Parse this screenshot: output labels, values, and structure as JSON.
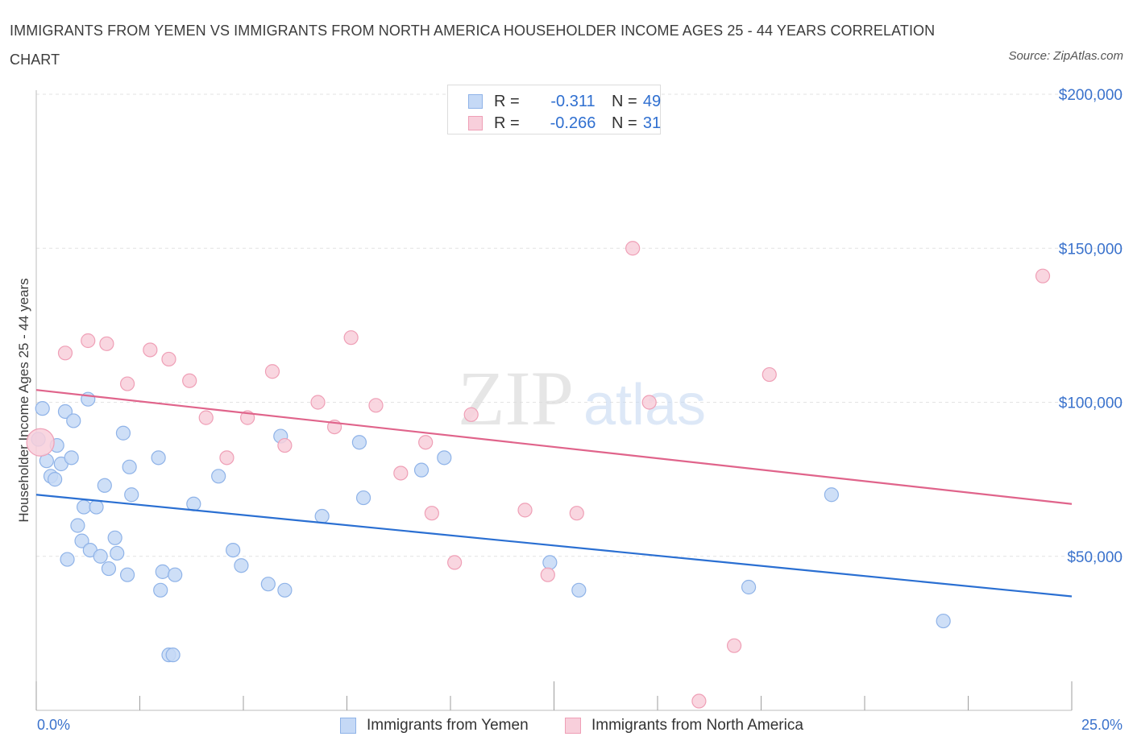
{
  "header": {
    "title": "IMMIGRANTS FROM YEMEN VS IMMIGRANTS FROM NORTH AMERICA HOUSEHOLDER INCOME AGES 25 - 44 YEARS CORRELATION CHART",
    "source": "Source: ZipAtlas.com"
  },
  "watermark": {
    "zip": "ZIP",
    "atlas": "atlas"
  },
  "stats": {
    "rows": [
      {
        "r_label": "R =",
        "r_value": "-0.311",
        "n_label": "N =",
        "n_value": "49"
      },
      {
        "r_label": "R =",
        "r_value": "-0.266",
        "n_label": "N =",
        "n_value": "31"
      }
    ]
  },
  "colors": {
    "yemen_fill": "#c5d9f6",
    "yemen_stroke": "#8fb3e8",
    "yemen_line": "#2a6fd2",
    "na_fill": "#f8cfdb",
    "na_stroke": "#ef9fb6",
    "na_line": "#e0648b",
    "axis_text": "#3a72cc",
    "grid": "#e3e3e3"
  },
  "chart_data": {
    "type": "scatter",
    "title": "IMMIGRANTS FROM YEMEN VS IMMIGRANTS FROM NORTH AMERICA HOUSEHOLDER INCOME AGES 25 - 44 YEARS CORRELATION CHART",
    "xlabel": "",
    "ylabel": "Householder Income Ages 25 - 44 years",
    "xlim": [
      0,
      25
    ],
    "ylim": [
      0,
      200000
    ],
    "x_tick_labels": [
      "0.0%",
      "25.0%"
    ],
    "y_tick_labels": [
      "$50,000",
      "$100,000",
      "$150,000",
      "$200,000"
    ],
    "y_ticks": [
      50000,
      100000,
      150000,
      200000
    ],
    "grid": true,
    "legend_position": "bottom",
    "series": [
      {
        "name": "Immigrants from Yemen",
        "r": -0.311,
        "n": 49,
        "trend": {
          "x": [
            0,
            25
          ],
          "y": [
            70000,
            37000
          ]
        },
        "points": [
          {
            "x": 0.05,
            "y": 88000
          },
          {
            "x": 0.15,
            "y": 98000
          },
          {
            "x": 0.25,
            "y": 81000
          },
          {
            "x": 0.35,
            "y": 76000
          },
          {
            "x": 0.45,
            "y": 75000
          },
          {
            "x": 0.5,
            "y": 86000
          },
          {
            "x": 0.6,
            "y": 80000
          },
          {
            "x": 0.7,
            "y": 97000
          },
          {
            "x": 0.75,
            "y": 49000
          },
          {
            "x": 0.85,
            "y": 82000
          },
          {
            "x": 0.9,
            "y": 94000
          },
          {
            "x": 1.0,
            "y": 60000
          },
          {
            "x": 1.1,
            "y": 55000
          },
          {
            "x": 1.15,
            "y": 66000
          },
          {
            "x": 1.25,
            "y": 101000
          },
          {
            "x": 1.3,
            "y": 52000
          },
          {
            "x": 1.45,
            "y": 66000
          },
          {
            "x": 1.55,
            "y": 50000
          },
          {
            "x": 1.65,
            "y": 73000
          },
          {
            "x": 1.75,
            "y": 46000
          },
          {
            "x": 1.9,
            "y": 56000
          },
          {
            "x": 1.95,
            "y": 51000
          },
          {
            "x": 2.1,
            "y": 90000
          },
          {
            "x": 2.2,
            "y": 44000
          },
          {
            "x": 2.25,
            "y": 79000
          },
          {
            "x": 2.3,
            "y": 70000
          },
          {
            "x": 2.95,
            "y": 82000
          },
          {
            "x": 3.0,
            "y": 39000
          },
          {
            "x": 3.05,
            "y": 45000
          },
          {
            "x": 3.2,
            "y": 18000
          },
          {
            "x": 3.3,
            "y": 18000
          },
          {
            "x": 3.35,
            "y": 44000
          },
          {
            "x": 3.8,
            "y": 67000
          },
          {
            "x": 4.4,
            "y": 76000
          },
          {
            "x": 4.75,
            "y": 52000
          },
          {
            "x": 4.95,
            "y": 47000
          },
          {
            "x": 5.6,
            "y": 41000
          },
          {
            "x": 5.9,
            "y": 89000
          },
          {
            "x": 6.0,
            "y": 39000
          },
          {
            "x": 6.9,
            "y": 63000
          },
          {
            "x": 7.8,
            "y": 87000
          },
          {
            "x": 7.9,
            "y": 69000
          },
          {
            "x": 9.3,
            "y": 78000
          },
          {
            "x": 9.85,
            "y": 82000
          },
          {
            "x": 12.4,
            "y": 48000
          },
          {
            "x": 13.1,
            "y": 39000
          },
          {
            "x": 17.2,
            "y": 40000
          },
          {
            "x": 19.2,
            "y": 70000
          },
          {
            "x": 21.9,
            "y": 29000
          }
        ]
      },
      {
        "name": "Immigrants from North America",
        "r": -0.266,
        "n": 31,
        "trend": {
          "x": [
            0,
            25
          ],
          "y": [
            104000,
            67000
          ]
        },
        "points": [
          {
            "x": 0.1,
            "y": 87000
          },
          {
            "x": 0.7,
            "y": 116000
          },
          {
            "x": 1.25,
            "y": 120000
          },
          {
            "x": 1.7,
            "y": 119000
          },
          {
            "x": 2.2,
            "y": 106000
          },
          {
            "x": 2.75,
            "y": 117000
          },
          {
            "x": 3.2,
            "y": 114000
          },
          {
            "x": 3.7,
            "y": 107000
          },
          {
            "x": 4.1,
            "y": 95000
          },
          {
            "x": 4.6,
            "y": 82000
          },
          {
            "x": 5.1,
            "y": 95000
          },
          {
            "x": 5.7,
            "y": 110000
          },
          {
            "x": 6.0,
            "y": 86000
          },
          {
            "x": 6.8,
            "y": 100000
          },
          {
            "x": 7.2,
            "y": 92000
          },
          {
            "x": 7.6,
            "y": 121000
          },
          {
            "x": 8.2,
            "y": 99000
          },
          {
            "x": 8.8,
            "y": 77000
          },
          {
            "x": 9.4,
            "y": 87000
          },
          {
            "x": 9.55,
            "y": 64000
          },
          {
            "x": 10.1,
            "y": 48000
          },
          {
            "x": 10.5,
            "y": 96000
          },
          {
            "x": 11.8,
            "y": 65000
          },
          {
            "x": 12.35,
            "y": 44000
          },
          {
            "x": 13.05,
            "y": 64000
          },
          {
            "x": 14.4,
            "y": 150000
          },
          {
            "x": 14.8,
            "y": 100000
          },
          {
            "x": 16.0,
            "y": 3000
          },
          {
            "x": 16.85,
            "y": 21000
          },
          {
            "x": 17.7,
            "y": 109000
          },
          {
            "x": 24.3,
            "y": 141000
          }
        ]
      }
    ]
  }
}
